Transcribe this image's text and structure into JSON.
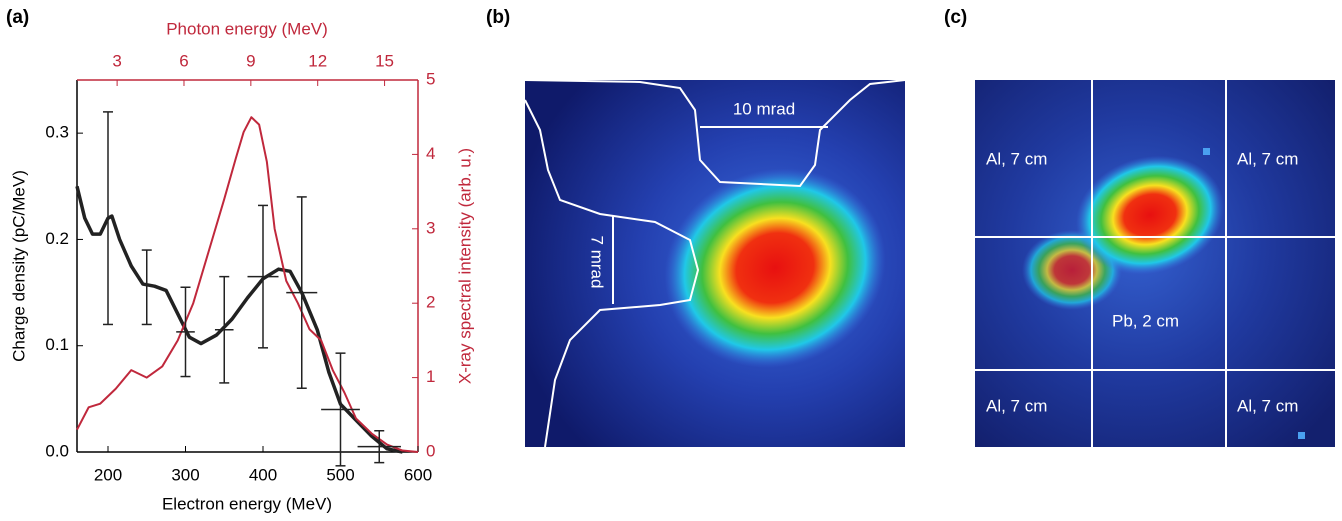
{
  "panel_labels": [
    "(a)",
    "(b)",
    "(c)"
  ],
  "chart_data": {
    "type": "line",
    "x_label": "Electron energy (MeV)",
    "y_label": "Charge density (pC/MeV)",
    "y2_label": "X-ray spectral intensity (arb. u.)",
    "x2_label": "Photon energy (MeV)",
    "xlim": [
      160,
      600
    ],
    "xticks": [
      200,
      300,
      400,
      500,
      600
    ],
    "ylim": [
      0,
      0.35
    ],
    "yticks": [
      {
        "value": 0,
        "label": "0.0"
      },
      0.1,
      0.2,
      0.3
    ],
    "y2lim": [
      0,
      5
    ],
    "y2ticks": [
      0,
      1,
      2,
      3,
      4,
      5
    ],
    "x2lim": [
      1.2,
      16.5
    ],
    "x2ticks": [
      3,
      6,
      9,
      12,
      15
    ],
    "series": [
      {
        "color": "#222222",
        "axis": "y",
        "x": [
          160,
          170,
          180,
          190,
          200,
          205,
          215,
          230,
          245,
          260,
          275,
          290,
          305,
          320,
          340,
          360,
          380,
          400,
          420,
          435,
          450,
          470,
          485,
          500,
          520,
          540,
          560,
          580
        ],
        "values": [
          0.25,
          0.22,
          0.205,
          0.205,
          0.22,
          0.222,
          0.2,
          0.175,
          0.158,
          0.156,
          0.152,
          0.13,
          0.108,
          0.102,
          0.11,
          0.125,
          0.145,
          0.163,
          0.172,
          0.17,
          0.15,
          0.115,
          0.075,
          0.045,
          0.03,
          0.015,
          0.003,
          0
        ]
      },
      {
        "color": "#c0283c",
        "axis": "y2",
        "x": [
          160,
          175,
          190,
          210,
          230,
          250,
          270,
          290,
          310,
          330,
          350,
          365,
          375,
          385,
          395,
          405,
          415,
          430,
          445,
          460,
          475,
          490,
          505,
          520,
          540,
          560,
          580,
          600
        ],
        "values": [
          0.3,
          0.6,
          0.65,
          0.85,
          1.1,
          1.0,
          1.15,
          1.5,
          2.0,
          2.7,
          3.4,
          3.95,
          4.3,
          4.5,
          4.4,
          3.9,
          3.0,
          2.3,
          2.0,
          1.65,
          1.5,
          1.1,
          0.8,
          0.45,
          0.25,
          0.1,
          0.02,
          0
        ]
      }
    ],
    "error_bars": {
      "color": "#222222",
      "x": [
        200,
        250,
        300,
        350,
        400,
        450,
        500,
        550
      ],
      "y": [
        0.22,
        0.155,
        0.113,
        0.115,
        0.165,
        0.15,
        0.04,
        0.005
      ],
      "yerr": [
        0.1,
        0.035,
        0.042,
        0.05,
        0.067,
        0.09,
        0.053,
        0.015
      ],
      "xerr": [
        null,
        null,
        12,
        12,
        20,
        20,
        25,
        28
      ]
    }
  },
  "image_b": {
    "annotations": [
      "10 mrad",
      "7 mrad"
    ]
  },
  "image_c": {
    "annotations": [
      "Al, 7 cm",
      "Al, 7 cm",
      "Pb, 2 cm",
      "Al, 7 cm",
      "Al, 7 cm"
    ]
  }
}
